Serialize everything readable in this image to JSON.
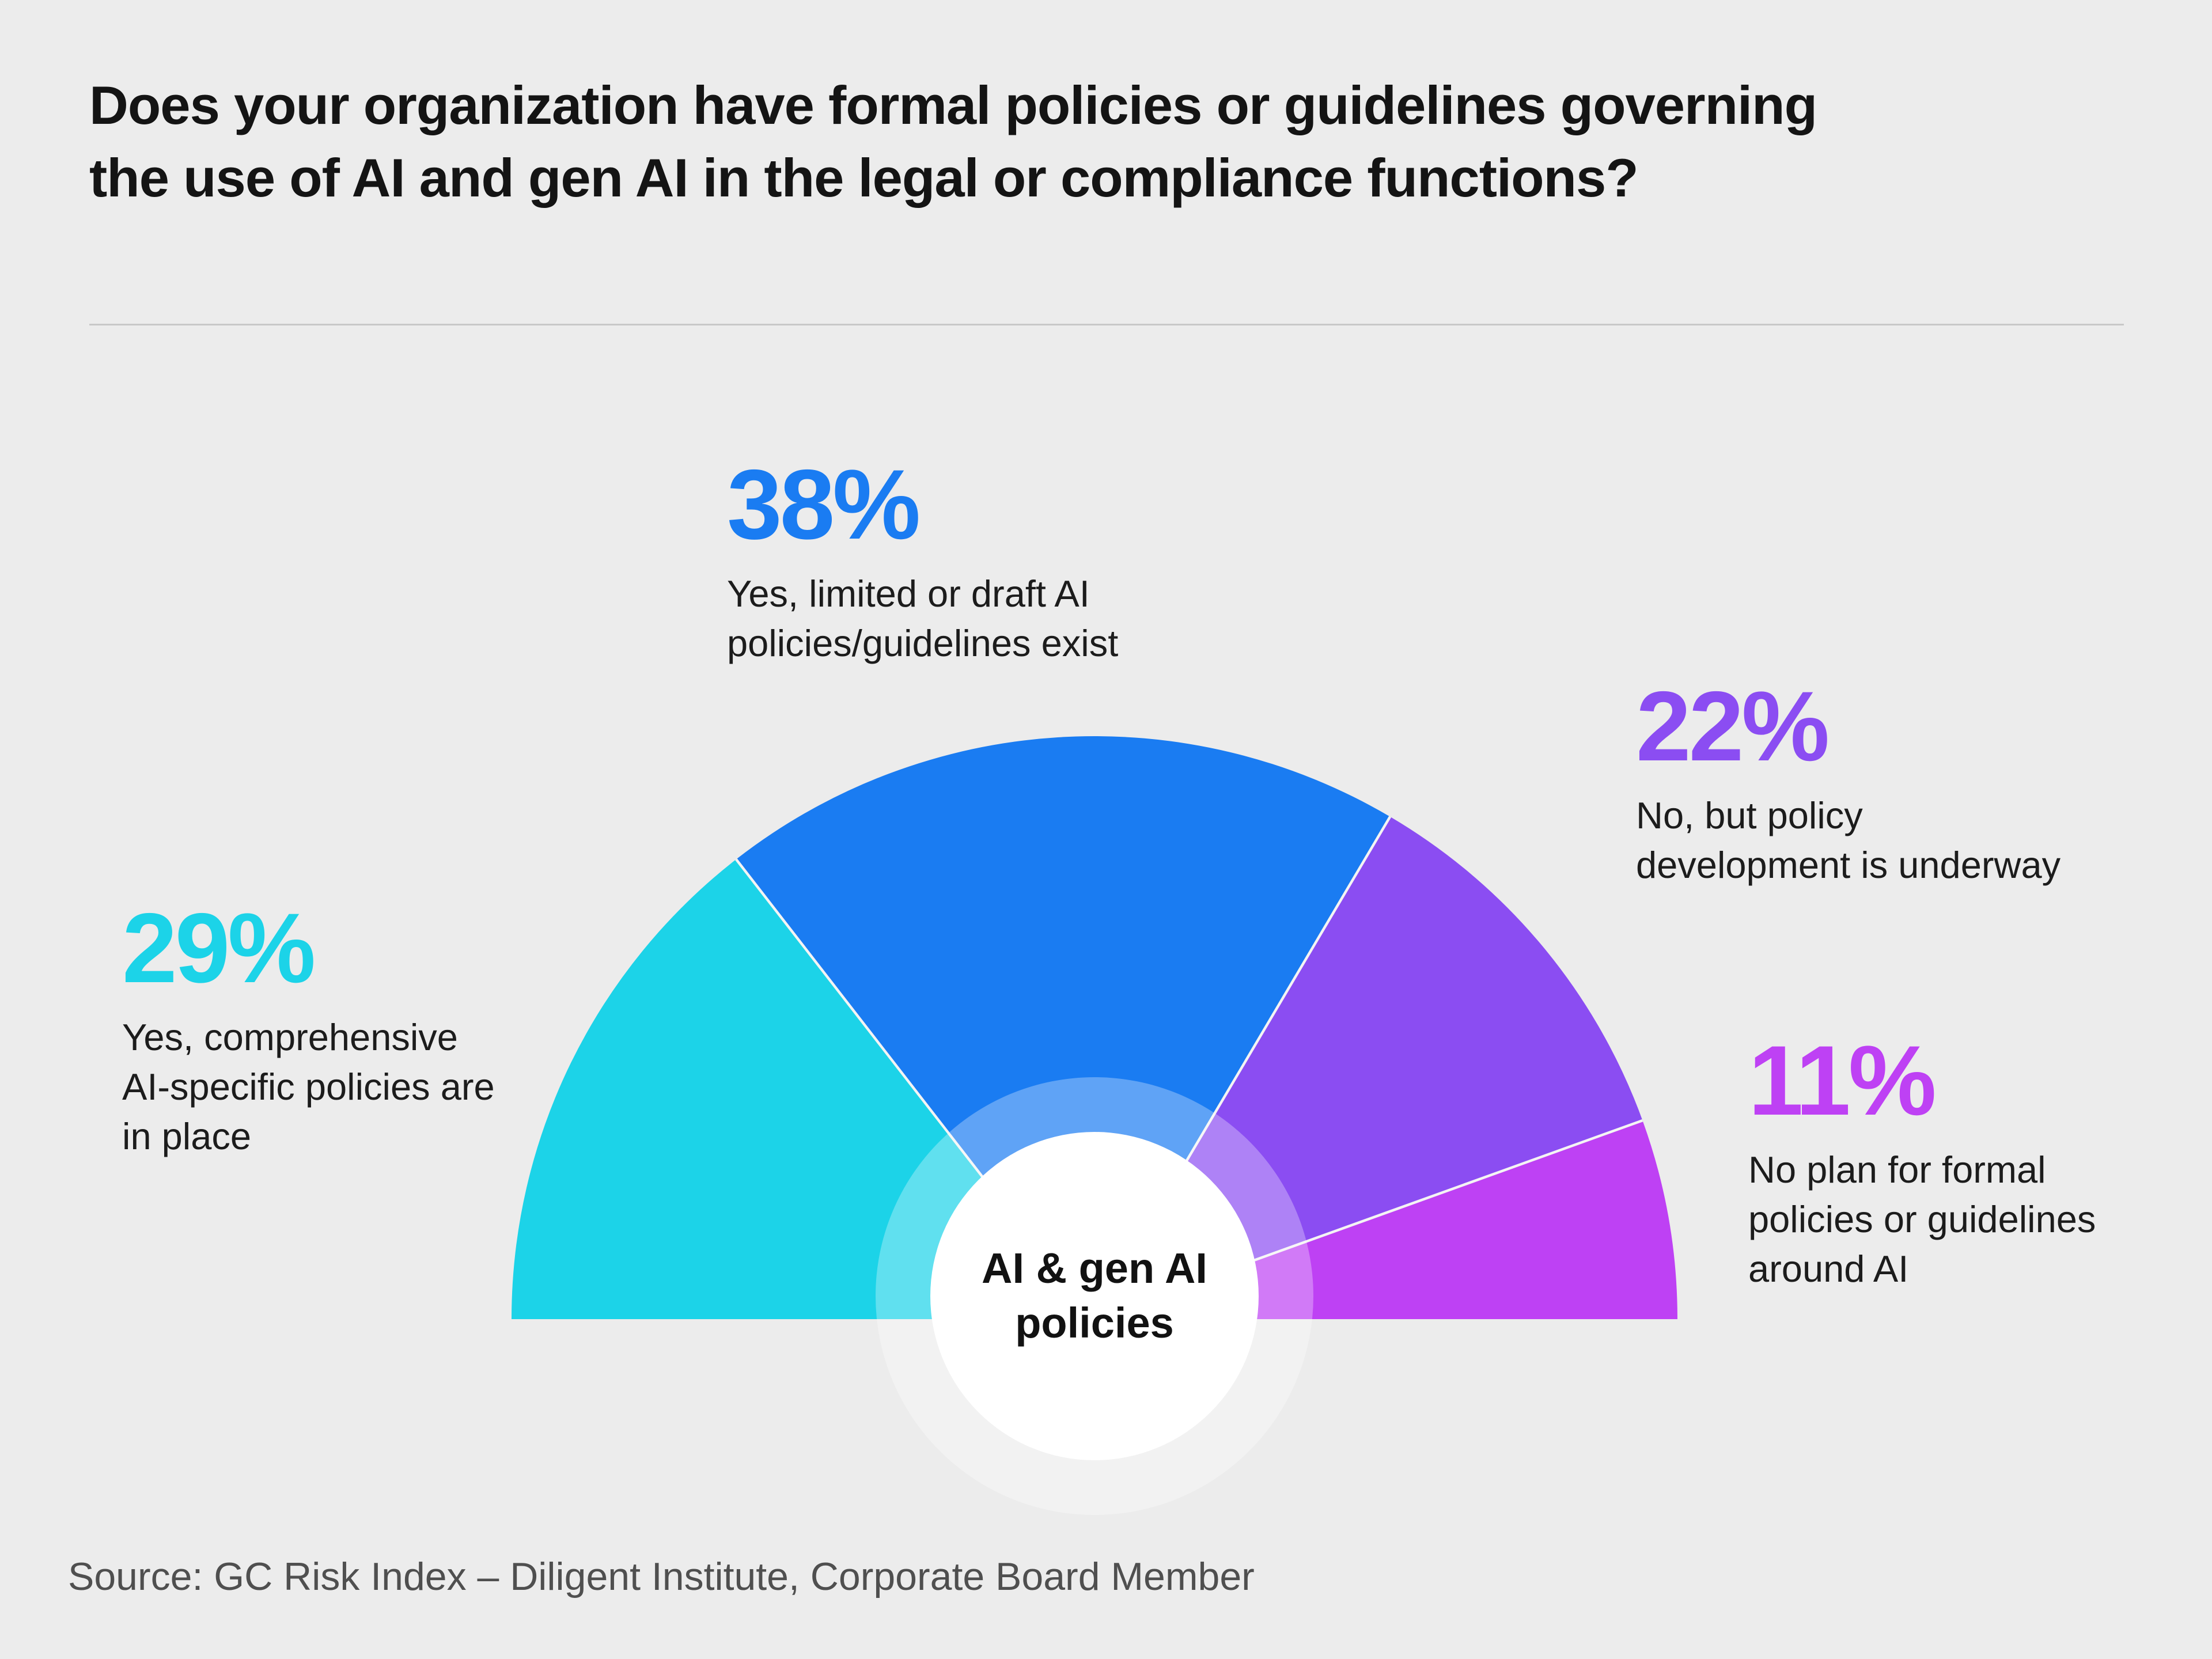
{
  "page": {
    "title_lines": [
      "Does your organization have formal policies or guidelines governing",
      "the use of AI and gen AI in the legal or compliance functions?"
    ],
    "source": "Source: GC Risk Index – Diligent Institute, Corporate Board Member"
  },
  "chart_data": {
    "type": "pie",
    "variant": "semicircle-donut-gauge",
    "title": "Does your organization have formal policies or guidelines governing the use of AI and gen AI in the legal or compliance functions?",
    "center_label": "AI & gen AI policies",
    "unit": "%",
    "total": 100,
    "start_angle_deg": 180,
    "end_angle_deg": 0,
    "direction": "clockwise-from-left",
    "legend_position": "callouts-around-gauge",
    "segments": [
      {
        "label": "Yes, comprehensive AI-specific policies are in place",
        "value": 29,
        "display": "29%",
        "color": "#1CD3E8"
      },
      {
        "label": "Yes, limited or draft AI policies/guidelines exist",
        "value": 38,
        "display": "38%",
        "color": "#1A7CF2"
      },
      {
        "label": "No, but policy development is underway",
        "value": 22,
        "display": "22%",
        "color": "#8B4DF2"
      },
      {
        "label": "No plan for formal policies or guidelines around AI",
        "value": 11,
        "display": "11%",
        "color": "#BE41F4"
      }
    ]
  }
}
